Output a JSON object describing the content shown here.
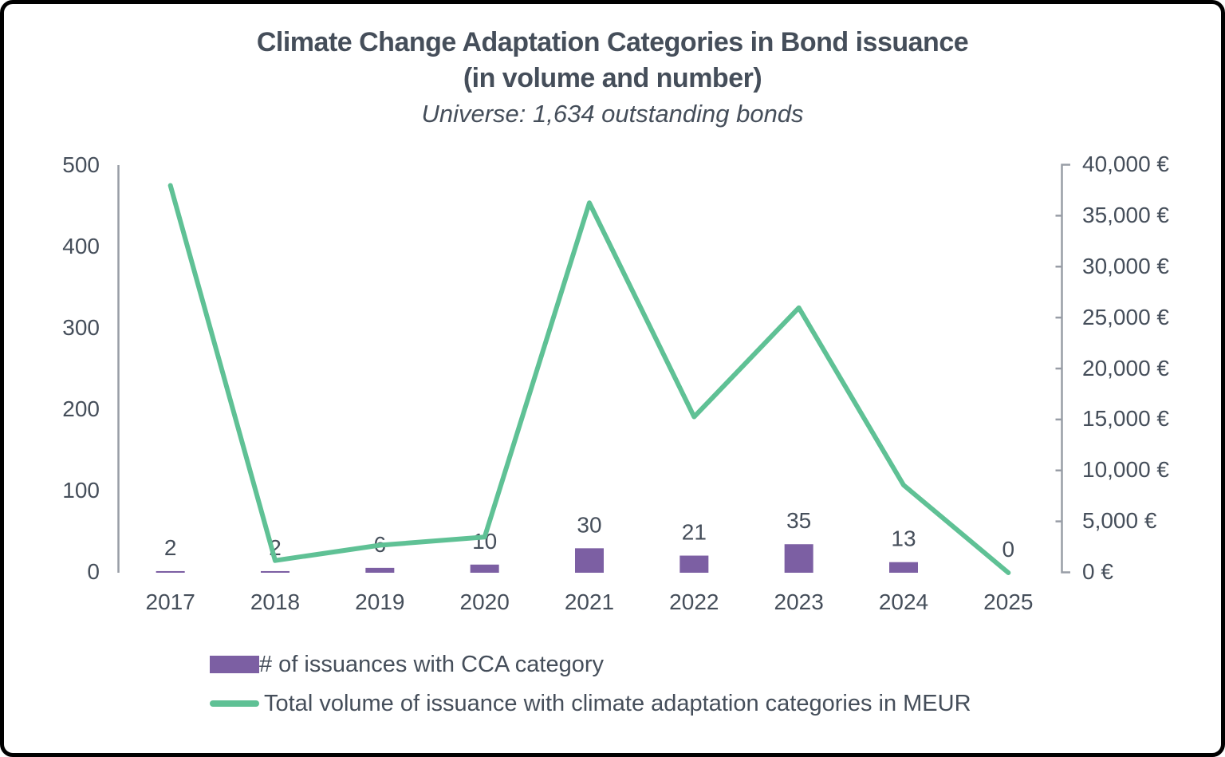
{
  "chart": {
    "title_line1": "Climate Change Adaptation Categories in Bond issuance",
    "title_line2": "(in volume and number)",
    "subtitle": "Universe: 1,634 outstanding bonds"
  },
  "chart_data": {
    "type": "bar+line combo",
    "categories": [
      "2017",
      "2018",
      "2019",
      "2020",
      "2021",
      "2022",
      "2023",
      "2024",
      "2025"
    ],
    "series": [
      {
        "name": "# of issuances with CCA category",
        "type": "bar",
        "axis": "left",
        "color": "#7c5fa3",
        "values": [
          2,
          2,
          6,
          10,
          30,
          21,
          35,
          13,
          0
        ],
        "data_labels": [
          "2",
          "2",
          "6",
          "10",
          "30",
          "21",
          "35",
          "13",
          "0"
        ]
      },
      {
        "name": "Total volume of issuance with climate adaptation categories in MEUR",
        "type": "line",
        "axis": "right",
        "color": "#5fc195",
        "values": [
          38000,
          1200,
          2700,
          3500,
          36300,
          15300,
          26000,
          8600,
          0
        ]
      }
    ],
    "left_axis": {
      "range": [
        0,
        500
      ],
      "ticks": [
        "500",
        "400",
        "300",
        "200",
        "100",
        "0"
      ]
    },
    "right_axis": {
      "range": [
        0,
        40000
      ],
      "ticks": [
        "40,000 €",
        "35,000 €",
        "30,000 €",
        "25,000 €",
        "20,000 €",
        "15,000 €",
        "10,000 €",
        "5,000 €",
        "0 €"
      ]
    },
    "grid": "off",
    "legend_position": "bottom-left"
  },
  "colors": {
    "bar": "#7c5fa3",
    "line": "#5fc195",
    "text": "#454e5a",
    "axis": "#989da6",
    "border": "#000000"
  }
}
